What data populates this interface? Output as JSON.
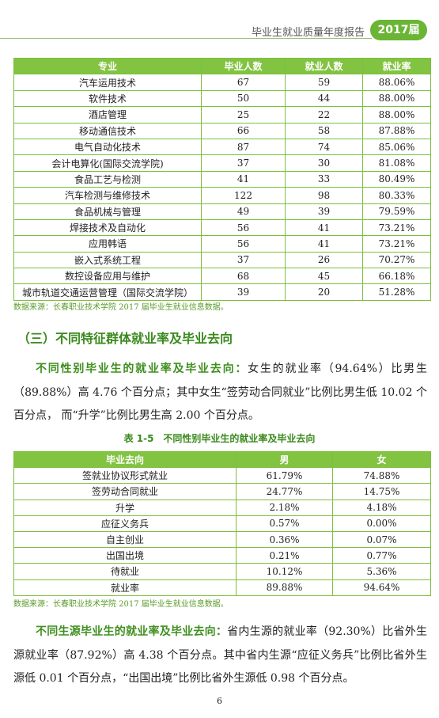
{
  "header": {
    "title": "毕业生就业质量年度报告",
    "badge": "2017届"
  },
  "table1": {
    "columns": [
      "专业",
      "毕业人数",
      "就业人数",
      "就业率"
    ],
    "rows": [
      [
        "汽车运用技术",
        "67",
        "59",
        "88.06%"
      ],
      [
        "软件技术",
        "50",
        "44",
        "88.00%"
      ],
      [
        "酒店管理",
        "25",
        "22",
        "88.00%"
      ],
      [
        "移动通信技术",
        "66",
        "58",
        "87.88%"
      ],
      [
        "电气自动化技术",
        "87",
        "74",
        "85.06%"
      ],
      [
        "会计电算化(国际交流学院)",
        "37",
        "30",
        "81.08%"
      ],
      [
        "食品工艺与检测",
        "41",
        "33",
        "80.49%"
      ],
      [
        "汽车检测与维修技术",
        "122",
        "98",
        "80.33%"
      ],
      [
        "食品机械与管理",
        "49",
        "39",
        "79.59%"
      ],
      [
        "焊接技术及自动化",
        "56",
        "41",
        "73.21%"
      ],
      [
        "应用韩语",
        "56",
        "41",
        "73.21%"
      ],
      [
        "嵌入式系统工程",
        "37",
        "26",
        "70.27%"
      ],
      [
        "数控设备应用与维护",
        "68",
        "45",
        "66.18%"
      ],
      [
        "城市轨道交通运营管理（国际交流学院）",
        "39",
        "20",
        "51.28%"
      ]
    ],
    "source": "数据来源：长春职业技术学院 2017 届毕业生就业信息数据。"
  },
  "section_heading": "（三）不同特征群体就业率及毕业去向",
  "paragraph1": {
    "lead": "不同性别毕业生的就业率及毕业去向：",
    "text": "女生的就业率（94.64%）比男生（89.88%）高 4.76 个百分点；其中女生“签劳动合同就业”比例比男生低 10.02 个百分点， 而“升学”比例比男生高 2.00 个百分点。"
  },
  "table2": {
    "caption": "表 1-5　不同性别毕业生的就业率及毕业去向",
    "columns": [
      "毕业去向",
      "男",
      "女"
    ],
    "rows": [
      [
        "签就业协议形式就业",
        "61.79%",
        "74.88%"
      ],
      [
        "签劳动合同就业",
        "24.77%",
        "14.75%"
      ],
      [
        "升学",
        "2.18%",
        "4.18%"
      ],
      [
        "应征义务兵",
        "0.57%",
        "0.00%"
      ],
      [
        "自主创业",
        "0.36%",
        "0.07%"
      ],
      [
        "出国出境",
        "0.21%",
        "0.77%"
      ],
      [
        "待就业",
        "10.12%",
        "5.36%"
      ],
      [
        "就业率",
        "89.88%",
        "94.64%"
      ]
    ],
    "source": "数据来源：长春职业技术学院 2017 届毕业生就业信息数据。"
  },
  "paragraph2": {
    "lead": "不同生源毕业生的就业率及毕业去向：",
    "text": "省内生源的就业率（92.30%）比省外生源就业率（87.92%）高 4.38 个百分点。其中省内生源“应征义务兵”比例比省外生源低 0.01 个百分点，“出国出境”比例比省外生源低 0.98 个百分点。"
  },
  "page_number": "6"
}
